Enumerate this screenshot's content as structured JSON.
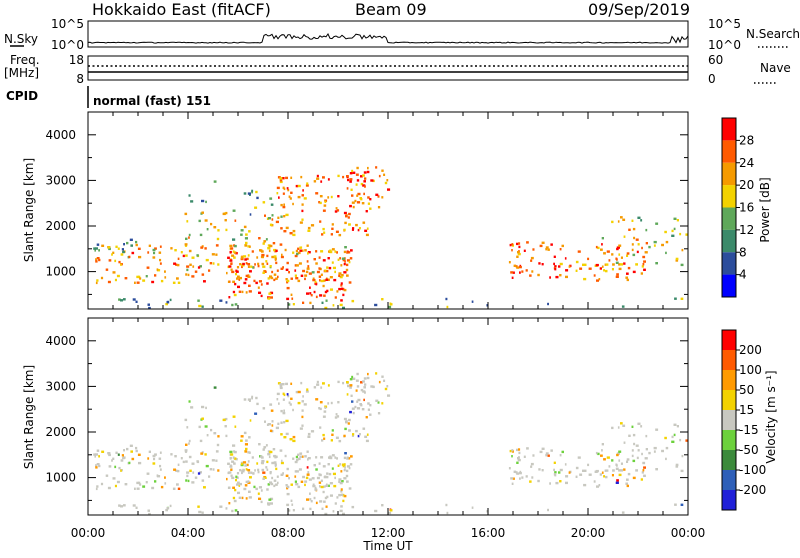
{
  "header": {
    "site": "Hokkaido East (fitACF)",
    "beam": "Beam 09",
    "date": "09/Sep/2019"
  },
  "strip_labels": {
    "nsky": "N.Sky",
    "nsky_hi": "10^5",
    "nsky_lo": "10^0",
    "nsearch_hi": "10^5",
    "nsearch_lo": "10^0",
    "nsearch": "N.Search",
    "freq_line1": "Freq.",
    "freq_line2": "[MHz]",
    "freq_hi": "18",
    "freq_lo": "8",
    "nave_hi": "60",
    "nave_lo": "0",
    "nave": "Nave",
    "cpid": "CPID",
    "cpid_value": "normal (fast) 151"
  },
  "colors": {
    "power": [
      "#0000ff",
      "#2c4d9c",
      "#3b8a6a",
      "#5fa85a",
      "#f3d200",
      "#f59a00",
      "#ff5a00",
      "#ff0000"
    ],
    "velocity": [
      "#2020d8",
      "#2e5fb8",
      "#3b8a3b",
      "#6cd13c",
      "#c8c8c0",
      "#f3d200",
      "#ff9a00",
      "#ff5a00",
      "#ff0000"
    ],
    "background": "#ffffff"
  },
  "chart_data": [
    {
      "type": "heatmap",
      "name": "power",
      "ylabel": "Slant Range [km]",
      "xlabel": "Time UT",
      "ylim": [
        180,
        4500
      ],
      "xlim": [
        "00:00",
        "24:00"
      ],
      "x_ticks": [
        "00:00",
        "04:00",
        "08:00",
        "12:00",
        "16:00",
        "20:00",
        "00:00"
      ],
      "y_ticks": [
        "1000",
        "2000",
        "3000",
        "4000"
      ],
      "colorbar": {
        "label": "Power [dB]",
        "ticks": [
          "28",
          "24",
          "20",
          "16",
          "12",
          "8",
          "4"
        ]
      }
    },
    {
      "type": "heatmap",
      "name": "velocity",
      "ylabel": "Slant Range [km]",
      "xlabel": "Time UT",
      "ylim": [
        180,
        4500
      ],
      "xlim": [
        "00:00",
        "24:00"
      ],
      "x_ticks": [
        "00:00",
        "04:00",
        "08:00",
        "12:00",
        "16:00",
        "20:00",
        "00:00"
      ],
      "y_ticks": [
        "1000",
        "2000",
        "3000",
        "4000"
      ],
      "colorbar": {
        "label": "Velocity [m s⁻¹]",
        "ticks": [
          "200",
          "100",
          "50",
          "15",
          "-15",
          "-50",
          "-100",
          "-200"
        ]
      }
    }
  ]
}
